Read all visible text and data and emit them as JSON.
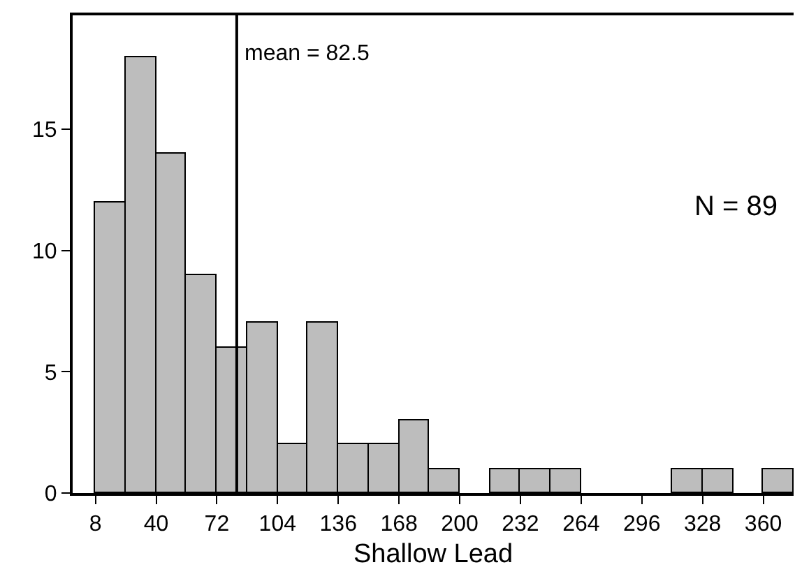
{
  "chart_data": {
    "type": "histogram",
    "xlabel": "Shallow Lead",
    "bins": [
      8,
      24,
      40,
      56,
      72,
      88,
      104,
      120,
      136,
      152,
      168,
      184,
      200,
      216,
      232,
      248,
      264,
      312,
      328,
      344,
      360,
      376
    ],
    "values": [
      12,
      18,
      14,
      9,
      6,
      7,
      2,
      7,
      2,
      2,
      3,
      1,
      0,
      1,
      1,
      1,
      0,
      1,
      1,
      0,
      1
    ],
    "color": "#bdbdbd",
    "xlim": [
      -4,
      376
    ],
    "xticks": [
      8,
      40,
      72,
      104,
      136,
      168,
      200,
      232,
      264,
      296,
      328,
      360
    ],
    "ylim": [
      0,
      19.7
    ],
    "yticks": [
      0,
      5,
      10,
      15
    ],
    "grid": false,
    "ref_lines": [
      {
        "axis": "x",
        "value": 82.5,
        "label": "mean = 82.5",
        "color": "#000000"
      }
    ],
    "annotations": [
      "N = 89"
    ]
  }
}
